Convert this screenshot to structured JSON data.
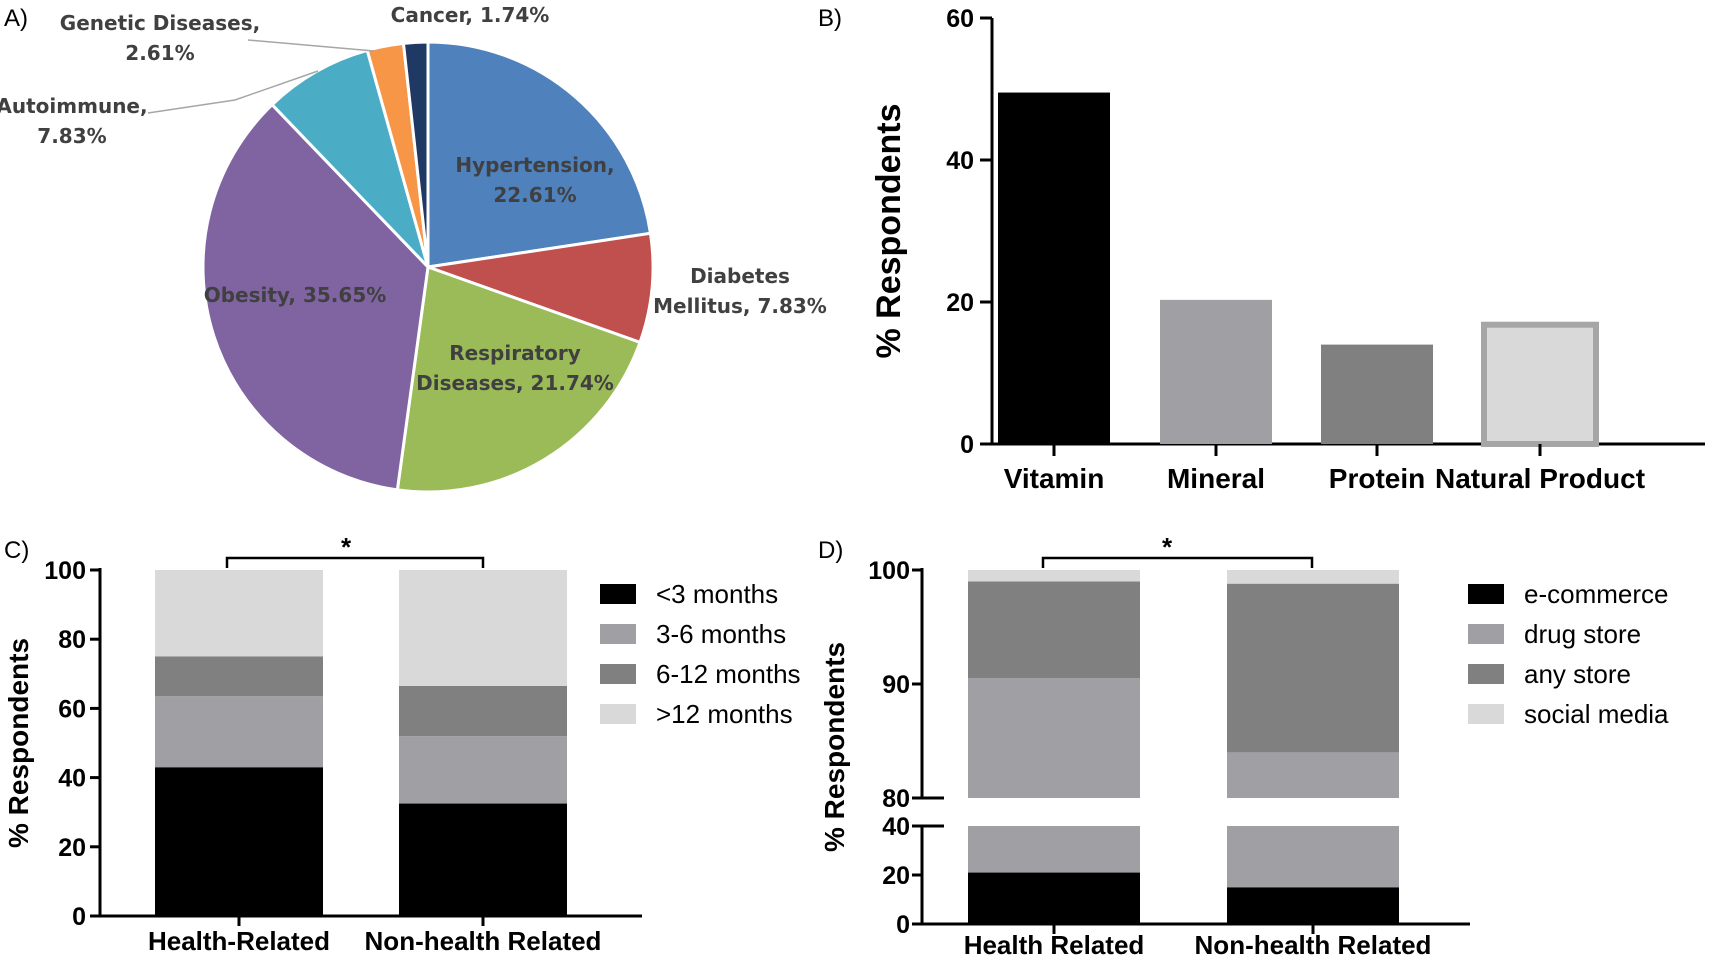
{
  "chart_data": [
    {
      "panel": "A)",
      "type": "pie",
      "slices": [
        {
          "label": "Hypertension, 22.61%",
          "lines": [
            "Hypertension,",
            "22.61%"
          ],
          "value": 22.61,
          "color": "#4f81bd"
        },
        {
          "label": "Diabetes Mellitus, 7.83%",
          "lines": [
            "Diabetes",
            "Mellitus, 7.83%"
          ],
          "value": 7.83,
          "color": "#c0504d"
        },
        {
          "label": "Respiratory Diseases, 21.74%",
          "lines": [
            "Respiratory",
            "Diseases, 21.74%"
          ],
          "value": 21.74,
          "color": "#9bbb59"
        },
        {
          "label": "Obesity, 35.65%",
          "lines": [
            "Obesity, 35.65%"
          ],
          "value": 35.65,
          "color": "#8064a2"
        },
        {
          "label": "Autoimmune, 7.83%",
          "lines": [
            "Autoimmune,",
            "7.83%"
          ],
          "value": 7.83,
          "color": "#4bacc6"
        },
        {
          "label": "Genetic Diseases, 2.61%",
          "lines": [
            "Genetic Diseases,",
            "2.61%"
          ],
          "value": 2.61,
          "color": "#f79646"
        },
        {
          "label": "Cancer, 1.74%",
          "lines": [
            "Cancer, 1.74%"
          ],
          "value": 1.74,
          "color": "#1f3864"
        }
      ]
    },
    {
      "panel": "B)",
      "type": "bar",
      "categories": [
        "Vitamin",
        "Mineral",
        "Protein",
        "Natural Product"
      ],
      "values": [
        49.5,
        20.3,
        14,
        16.8
      ],
      "colors": [
        "#000000",
        "#a0a0a4",
        "#808080",
        "#d9d9d9"
      ],
      "ylabel": "% Respondents",
      "ylim": [
        0,
        60
      ],
      "yticks": [
        0,
        20,
        40,
        60
      ]
    },
    {
      "panel": "C)",
      "type": "bar",
      "stacked": true,
      "categories": [
        "Health-Related",
        "Non-health Related"
      ],
      "series": [
        {
          "name": "<3 months",
          "values": [
            43,
            32.5
          ],
          "color": "#000000"
        },
        {
          "name": "3-6 months",
          "values": [
            20.5,
            19.5
          ],
          "color": "#a0a0a4"
        },
        {
          "name": "6-12 months",
          "values": [
            11.5,
            14.5
          ],
          "color": "#808080"
        },
        {
          "name": ">12 months",
          "values": [
            25,
            33.5
          ],
          "color": "#d9d9d9"
        }
      ],
      "ylabel": "% Respondents",
      "ylim": [
        0,
        100
      ],
      "yticks": [
        0,
        20,
        40,
        60,
        80,
        100
      ],
      "legend": "right",
      "annotation": "*"
    },
    {
      "panel": "D)",
      "type": "bar",
      "stacked": true,
      "broken_axis": {
        "lower": [
          0,
          40
        ],
        "upper": [
          80,
          100
        ]
      },
      "categories": [
        "Health Related",
        "Non-health Related"
      ],
      "series": [
        {
          "name": "e-commerce",
          "values": [
            21,
            15
          ],
          "color": "#000000"
        },
        {
          "name": "drug store",
          "values": [
            69.5,
            69
          ],
          "color": "#a0a0a4"
        },
        {
          "name": "any store",
          "values": [
            8.5,
            14.8
          ],
          "color": "#808080"
        },
        {
          "name": "social media",
          "values": [
            1,
            1.2
          ],
          "color": "#d9d9d9"
        }
      ],
      "ylabel": "% Respondents",
      "yticks_lower": [
        0,
        20,
        40
      ],
      "yticks_upper": [
        80,
        90,
        100
      ],
      "legend": "right",
      "annotation": "*"
    }
  ]
}
